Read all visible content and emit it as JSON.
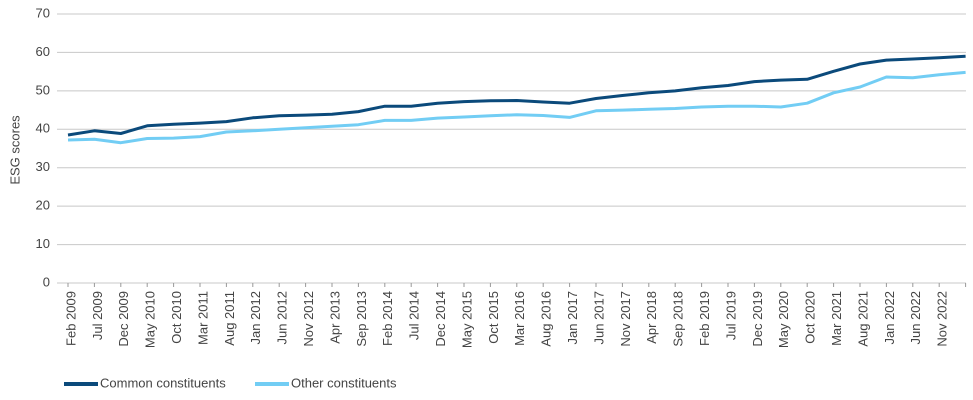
{
  "chart_data": {
    "type": "line",
    "y_label": "ESG scores",
    "categories": [
      "Feb 2009",
      "Jul 2009",
      "Dec 2009",
      "May 2010",
      "Oct 2010",
      "Mar 2011",
      "Aug 2011",
      "Jan 2012",
      "Jun 2012",
      "Nov 2012",
      "Apr 2013",
      "Sep 2013",
      "Feb 2014",
      "Jul 2014",
      "Dec 2014",
      "May 2015",
      "Oct 2015",
      "Mar 2016",
      "Aug 2016",
      "Jan 2017",
      "Jun 2017",
      "Nov 2017",
      "Apr 2018",
      "Sep 2018",
      "Feb 2019",
      "Jul 2019",
      "Dec 2019",
      "May 2020",
      "Oct 2020",
      "Mar 2021",
      "Aug 2021",
      "Jan 2022",
      "Jun 2022",
      "Nov 2022",
      null
    ],
    "series": [
      {
        "name": "Common constituents",
        "color": "#0b4a7b",
        "values": [
          38.5,
          39.6,
          38.9,
          40.9,
          41.3,
          41.6,
          42.0,
          43.0,
          43.5,
          43.7,
          43.9,
          44.6,
          46.0,
          46.0,
          46.8,
          47.2,
          47.4,
          47.5,
          47.1,
          46.8,
          48.0,
          48.8,
          49.5,
          50.0,
          50.8,
          51.4,
          52.4,
          52.8,
          53.0,
          55.1,
          57.0,
          58.0,
          58.3,
          58.6,
          59.0
        ]
      },
      {
        "name": "Other constituents",
        "color": "#72cdf4",
        "values": [
          37.2,
          37.4,
          36.5,
          37.6,
          37.7,
          38.1,
          39.3,
          39.6,
          40.0,
          40.4,
          40.8,
          41.2,
          42.3,
          42.3,
          42.9,
          43.2,
          43.5,
          43.8,
          43.6,
          43.1,
          44.8,
          45.0,
          45.2,
          45.4,
          45.8,
          46.0,
          46.0,
          45.8,
          46.8,
          49.5,
          51.0,
          53.6,
          53.4,
          54.2,
          54.8
        ]
      }
    ],
    "ylim": [
      0,
      70
    ],
    "yticks": [
      0,
      10,
      20,
      30,
      40,
      50,
      60,
      70
    ],
    "grid": true,
    "legend": "bottom"
  }
}
